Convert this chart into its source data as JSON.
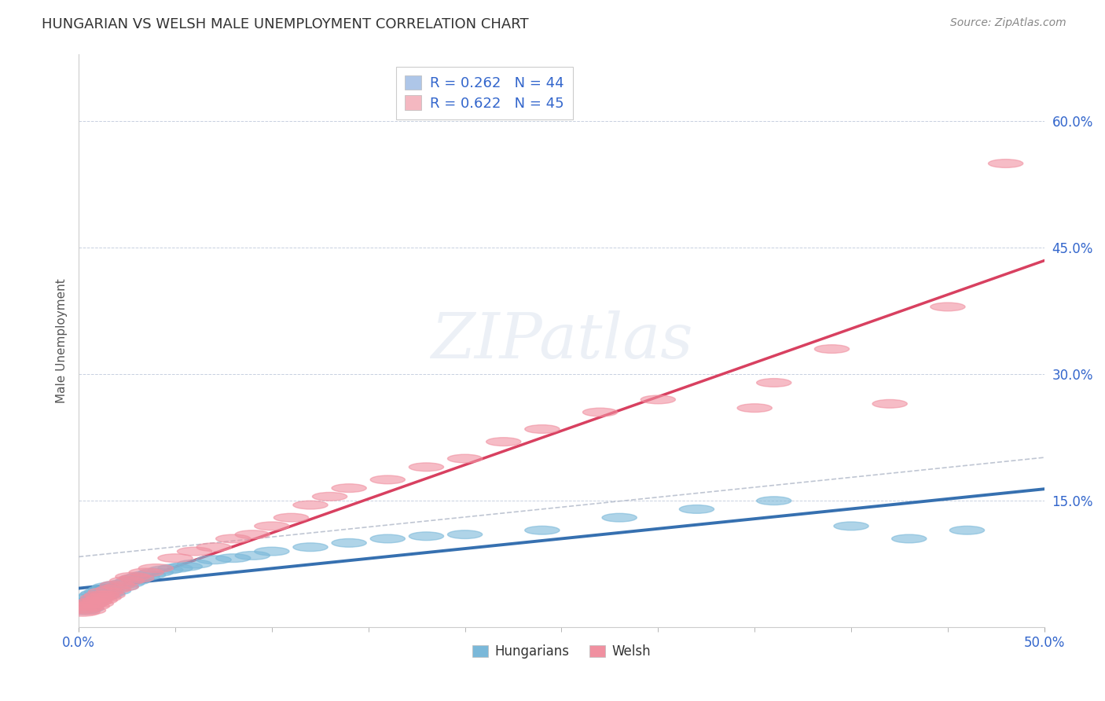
{
  "title": "HUNGARIAN VS WELSH MALE UNEMPLOYMENT CORRELATION CHART",
  "source_text": "Source: ZipAtlas.com",
  "ylabel": "Male Unemployment",
  "watermark": "ZIPatlas",
  "legend_entries": [
    {
      "label": "R = 0.262   N = 44",
      "color": "#aec6e8"
    },
    {
      "label": "R = 0.622   N = 45",
      "color": "#f4b8c1"
    }
  ],
  "series_labels": [
    "Hungarians",
    "Welsh"
  ],
  "hungarian_color": "#7ab8d9",
  "welsh_color": "#f090a0",
  "hungarian_line_color": "#3670b0",
  "welsh_line_color": "#d84060",
  "dashed_line_color": "#b0b8c8",
  "xlim": [
    0.0,
    0.5
  ],
  "ylim": [
    0.0,
    0.68
  ],
  "xtick_labels": [
    "0.0%",
    "50.0%"
  ],
  "ytick_positions": [
    0.15,
    0.3,
    0.45,
    0.6
  ],
  "ytick_labels": [
    "15.0%",
    "30.0%",
    "45.0%",
    "60.0%"
  ],
  "background_color": "#ffffff",
  "grid_color": "#c8d0e0",
  "hungarian_x": [
    0.002,
    0.003,
    0.004,
    0.005,
    0.006,
    0.007,
    0.008,
    0.009,
    0.01,
    0.011,
    0.012,
    0.013,
    0.014,
    0.015,
    0.016,
    0.018,
    0.02,
    0.022,
    0.025,
    0.028,
    0.03,
    0.033,
    0.036,
    0.04,
    0.045,
    0.05,
    0.055,
    0.06,
    0.07,
    0.08,
    0.09,
    0.1,
    0.12,
    0.14,
    0.16,
    0.18,
    0.2,
    0.24,
    0.28,
    0.32,
    0.36,
    0.4,
    0.43,
    0.46
  ],
  "hungarian_y": [
    0.02,
    0.025,
    0.022,
    0.03,
    0.028,
    0.035,
    0.032,
    0.038,
    0.04,
    0.036,
    0.042,
    0.038,
    0.045,
    0.04,
    0.048,
    0.043,
    0.05,
    0.048,
    0.052,
    0.055,
    0.058,
    0.06,
    0.062,
    0.065,
    0.068,
    0.07,
    0.072,
    0.075,
    0.08,
    0.082,
    0.085,
    0.09,
    0.095,
    0.1,
    0.105,
    0.108,
    0.11,
    0.115,
    0.13,
    0.14,
    0.15,
    0.12,
    0.105,
    0.115
  ],
  "welsh_x": [
    0.002,
    0.003,
    0.004,
    0.005,
    0.006,
    0.007,
    0.008,
    0.009,
    0.01,
    0.011,
    0.012,
    0.013,
    0.014,
    0.015,
    0.018,
    0.02,
    0.022,
    0.025,
    0.028,
    0.03,
    0.035,
    0.04,
    0.05,
    0.06,
    0.07,
    0.08,
    0.09,
    0.1,
    0.11,
    0.12,
    0.13,
    0.14,
    0.16,
    0.18,
    0.2,
    0.22,
    0.24,
    0.27,
    0.3,
    0.35,
    0.36,
    0.39,
    0.42,
    0.45,
    0.48
  ],
  "welsh_y": [
    0.018,
    0.022,
    0.025,
    0.02,
    0.028,
    0.025,
    0.03,
    0.028,
    0.035,
    0.032,
    0.038,
    0.035,
    0.042,
    0.038,
    0.045,
    0.05,
    0.048,
    0.055,
    0.06,
    0.058,
    0.065,
    0.07,
    0.082,
    0.09,
    0.095,
    0.105,
    0.11,
    0.12,
    0.13,
    0.145,
    0.155,
    0.165,
    0.175,
    0.19,
    0.2,
    0.22,
    0.235,
    0.255,
    0.27,
    0.26,
    0.29,
    0.33,
    0.265,
    0.38,
    0.55
  ]
}
